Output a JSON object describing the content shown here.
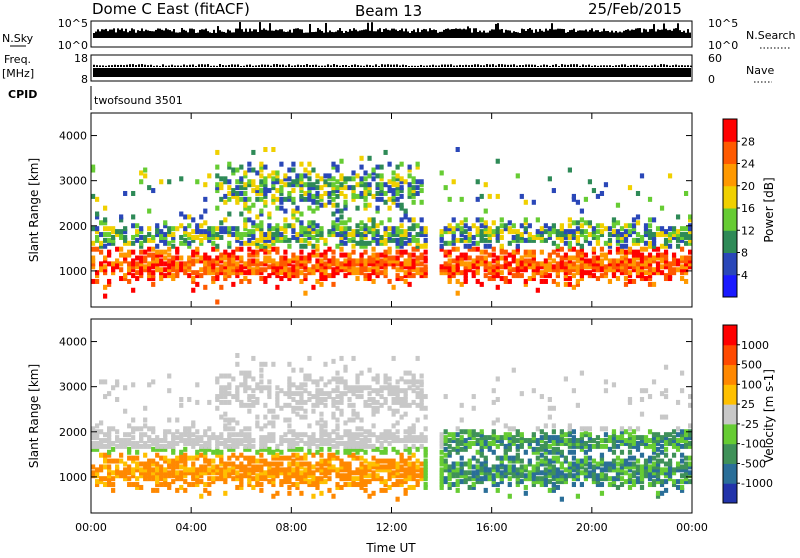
{
  "header": {
    "station": "Dome C East (fitACF)",
    "beam": "Beam 13",
    "date": "25/Feb/2015"
  },
  "aux_panels": {
    "nsky": {
      "label": "N.Sky",
      "left_ticks": [
        "10^5",
        "10^0"
      ],
      "right_ticks": [
        "10^5",
        "10^0"
      ],
      "right_label": "N.Search"
    },
    "freq": {
      "label_line1": "Freq.",
      "label_line2": "[MHz]",
      "left_ticks": [
        "18",
        "8"
      ],
      "right_ticks": [
        "60",
        "0"
      ],
      "right_label": "Nave"
    },
    "cpid": {
      "label": "CPID",
      "program": "twofsound 3501"
    }
  },
  "colors": {
    "power_scale": [
      "#1a1aff",
      "#2a47b8",
      "#2e8a57",
      "#66cc33",
      "#f0d000",
      "#ff9900",
      "#ff5a00",
      "#ff0000"
    ],
    "velocity_scale": [
      "#2233aa",
      "#2a6e98",
      "#3f9159",
      "#66cc33",
      "#c8c8c8",
      "#ffc000",
      "#ff8800",
      "#ff4a00",
      "#ff0000"
    ],
    "power_dominant": "#ff2a00",
    "velocity_dominant": "#ff8800"
  },
  "chart_data": [
    {
      "type": "heatmap",
      "name": "power",
      "xlabel": "",
      "ylabel": "Slant Range [km]",
      "ylim": [
        200,
        4500
      ],
      "y_ticks": [
        "1000",
        "2000",
        "3000",
        "4000"
      ],
      "x_ticks": [
        "00:00",
        "04:00",
        "08:00",
        "12:00",
        "16:00",
        "20:00",
        "00:00"
      ],
      "xlim": [
        "00:00",
        "24:00"
      ],
      "colorbar": {
        "label": "Power [dB]",
        "tick_labels": [
          "4",
          "8",
          "12",
          "16",
          "20",
          "24",
          "28"
        ],
        "range": [
          0,
          32
        ]
      }
    },
    {
      "type": "heatmap",
      "name": "velocity",
      "xlabel": "Time UT",
      "ylabel": "Slant Range [km]",
      "ylim": [
        200,
        4500
      ],
      "y_ticks": [
        "1000",
        "2000",
        "3000",
        "4000"
      ],
      "x_ticks": [
        "00:00",
        "04:00",
        "08:00",
        "12:00",
        "16:00",
        "20:00",
        "00:00"
      ],
      "xlim": [
        "00:00",
        "24:00"
      ],
      "colorbar": {
        "label": "Velocity [m s-1]",
        "tick_labels": [
          "1000",
          "500",
          "100",
          "25",
          "-25",
          "-100",
          "-500",
          "-1000"
        ]
      }
    }
  ]
}
